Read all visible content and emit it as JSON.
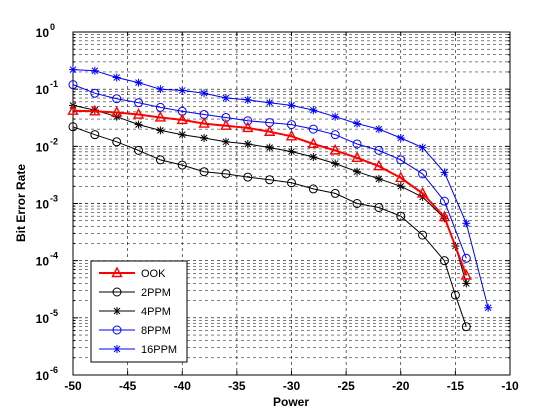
{
  "chart_data": {
    "type": "line",
    "title": "",
    "xlabel": "Power",
    "ylabel": "Bit Error Rate",
    "x_scale": "linear",
    "y_scale": "log",
    "xlim": [
      -50,
      -10
    ],
    "ylim": [
      1e-06,
      1
    ],
    "xticks": [
      -50,
      -45,
      -40,
      -35,
      -30,
      -25,
      -20,
      -15,
      -10
    ],
    "yticks": [
      {
        "value": 1e-06,
        "base": "10",
        "exp": "-6"
      },
      {
        "value": 1e-05,
        "base": "10",
        "exp": "-5"
      },
      {
        "value": 0.0001,
        "base": "10",
        "exp": "-4"
      },
      {
        "value": 0.001,
        "base": "10",
        "exp": "-3"
      },
      {
        "value": 0.01,
        "base": "10",
        "exp": "-2"
      },
      {
        "value": 0.1,
        "base": "10",
        "exp": "-1"
      },
      {
        "value": 1,
        "base": "10",
        "exp": "0"
      }
    ],
    "grid": true,
    "legend_position": "bottom-left",
    "series": [
      {
        "name": "OOK",
        "color": "#ff0000",
        "marker": "triangle",
        "line_width": 2,
        "x": [
          -50,
          -48,
          -46,
          -44,
          -42,
          -40,
          -38,
          -36,
          -34,
          -32,
          -30,
          -28,
          -26,
          -24,
          -22,
          -20,
          -18,
          -16,
          -14
        ],
        "y": [
          0.042,
          0.041,
          0.039,
          0.036,
          0.032,
          0.029,
          0.025,
          0.023,
          0.021,
          0.018,
          0.015,
          0.011,
          0.0085,
          0.0063,
          0.0045,
          0.0028,
          0.0015,
          0.00058,
          5.5e-05
        ]
      },
      {
        "name": "2PPM",
        "color": "#000000",
        "marker": "circle",
        "line_width": 1,
        "x": [
          -50,
          -48,
          -46,
          -44,
          -42,
          -40,
          -38,
          -36,
          -34,
          -32,
          -30,
          -28,
          -26,
          -24,
          -22,
          -20,
          -18,
          -16,
          -15,
          -14
        ],
        "y": [
          0.022,
          0.016,
          0.012,
          0.0085,
          0.0058,
          0.0047,
          0.0036,
          0.0033,
          0.0029,
          0.0026,
          0.0023,
          0.0018,
          0.0015,
          0.001,
          0.00085,
          0.0006,
          0.00028,
          0.0001,
          2.5e-05,
          7e-06
        ]
      },
      {
        "name": "4PPM",
        "color": "#000000",
        "marker": "star",
        "line_width": 1,
        "x": [
          -50,
          -48,
          -46,
          -44,
          -42,
          -40,
          -38,
          -36,
          -34,
          -32,
          -30,
          -28,
          -26,
          -24,
          -22,
          -20,
          -18,
          -16,
          -15,
          -14
        ],
        "y": [
          0.052,
          0.043,
          0.033,
          0.024,
          0.019,
          0.016,
          0.014,
          0.012,
          0.011,
          0.0095,
          0.0081,
          0.0065,
          0.005,
          0.0036,
          0.0027,
          0.002,
          0.0013,
          0.00055,
          0.00018,
          4e-05
        ]
      },
      {
        "name": "8PPM",
        "color": "#0000ff",
        "marker": "circle",
        "line_width": 1,
        "x": [
          -50,
          -48,
          -46,
          -44,
          -42,
          -40,
          -38,
          -36,
          -34,
          -32,
          -30,
          -28,
          -26,
          -24,
          -22,
          -20,
          -18,
          -16,
          -14
        ],
        "y": [
          0.12,
          0.085,
          0.068,
          0.058,
          0.048,
          0.041,
          0.036,
          0.032,
          0.028,
          0.026,
          0.024,
          0.02,
          0.016,
          0.011,
          0.0085,
          0.0058,
          0.0033,
          0.0011,
          0.00011
        ]
      },
      {
        "name": "16PPM",
        "color": "#0000ff",
        "marker": "star",
        "line_width": 1,
        "x": [
          -50,
          -48,
          -46,
          -44,
          -42,
          -40,
          -38,
          -36,
          -34,
          -32,
          -30,
          -28,
          -26,
          -24,
          -22,
          -20,
          -18,
          -16,
          -14,
          -12
        ],
        "y": [
          0.22,
          0.21,
          0.16,
          0.13,
          0.1,
          0.095,
          0.085,
          0.07,
          0.065,
          0.058,
          0.052,
          0.043,
          0.033,
          0.025,
          0.02,
          0.014,
          0.0095,
          0.0035,
          0.00045,
          1.5e-05
        ]
      }
    ]
  }
}
